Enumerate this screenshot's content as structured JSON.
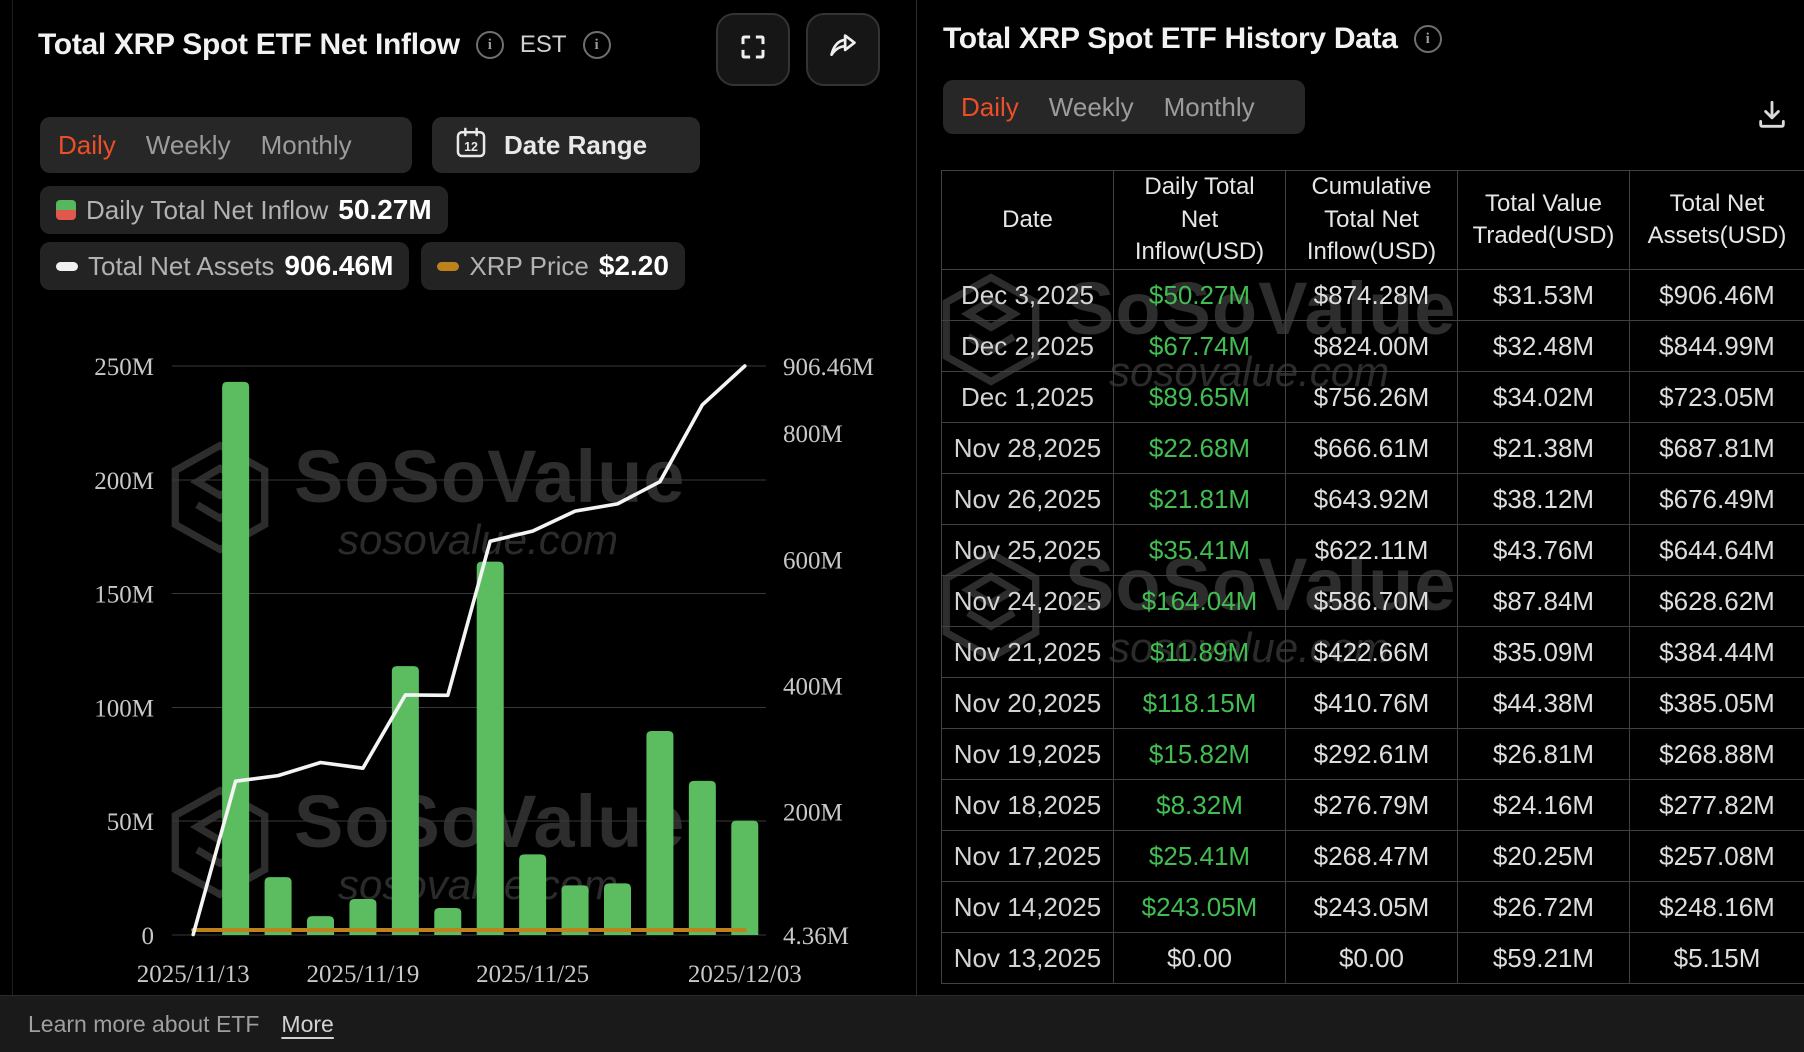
{
  "left_panel": {
    "title": "Total XRP Spot ETF Net Inflow",
    "timezone": "EST",
    "tabs": [
      "Daily",
      "Weekly",
      "Monthly"
    ],
    "active_tab": "Daily",
    "date_range_label": "Date Range",
    "legend": [
      {
        "label": "Daily Total Net Inflow",
        "value": "50.27M",
        "swatch": "green-red-split-square"
      },
      {
        "label": "Total Net Assets",
        "value": "906.46M",
        "swatch": "white-dash"
      },
      {
        "label": "XRP Price",
        "value": "$2.20",
        "swatch": "gold-dash"
      }
    ]
  },
  "chart_data": {
    "type": "combo",
    "x": [
      "2025/11/13",
      "2025/11/14",
      "2025/11/17",
      "2025/11/18",
      "2025/11/19",
      "2025/11/20",
      "2025/11/21",
      "2025/11/24",
      "2025/11/25",
      "2025/11/26",
      "2025/11/28",
      "2025/12/01",
      "2025/12/02",
      "2025/12/03"
    ],
    "x_tick_labels": {
      "0": "2025/11/13",
      "4": "2025/11/19",
      "8": "2025/11/25",
      "13": "2025/12/03"
    },
    "series": [
      {
        "name": "Daily Total Net Inflow",
        "type": "bar",
        "axis": "left",
        "color": "#5cbd60",
        "values": [
          0,
          243.05,
          25.41,
          8.32,
          15.82,
          118.15,
          11.89,
          164.04,
          35.41,
          21.81,
          22.68,
          89.65,
          67.74,
          50.27
        ]
      },
      {
        "name": "Total Net Assets",
        "type": "line",
        "axis": "right",
        "color": "#f4f4f4",
        "values": [
          5.15,
          248.16,
          257.08,
          277.82,
          268.88,
          385.05,
          384.44,
          628.62,
          644.64,
          676.49,
          687.81,
          723.05,
          844.99,
          906.46
        ]
      },
      {
        "name": "XRP Price",
        "type": "line",
        "axis": "price",
        "color": "#bd821b",
        "values": [
          2.2,
          2.2,
          2.2,
          2.2,
          2.2,
          2.2,
          2.2,
          2.2,
          2.2,
          2.2,
          2.2,
          2.2,
          2.2,
          2.2
        ]
      }
    ],
    "left_axis": {
      "ticks": [
        "250M",
        "200M",
        "150M",
        "100M",
        "50M",
        "0"
      ],
      "min": 0,
      "max": 250
    },
    "right_axis": {
      "ticks": [
        "906.46M",
        "800M",
        "600M",
        "400M",
        "200M",
        "4.36M"
      ],
      "min": 4.36,
      "max": 906.46
    },
    "unit": "USD millions",
    "grid": true,
    "title": "Total XRP Spot ETF Net Inflow"
  },
  "right_panel": {
    "title": "Total XRP Spot ETF History Data",
    "tabs": [
      "Daily",
      "Weekly",
      "Monthly"
    ],
    "active_tab": "Daily",
    "table": {
      "headers": [
        "Date",
        "Daily Total Net Inflow(USD)",
        "Cumulative Total Net Inflow(USD)",
        "Total Value Traded(USD)",
        "Total Net Assets(USD)"
      ],
      "rows": [
        {
          "date": "Dec 3,2025",
          "inflow": "$50.27M",
          "cumulative": "$874.28M",
          "traded": "$31.53M",
          "assets": "$906.46M",
          "inflow_positive": true
        },
        {
          "date": "Dec 2,2025",
          "inflow": "$67.74M",
          "cumulative": "$824.00M",
          "traded": "$32.48M",
          "assets": "$844.99M",
          "inflow_positive": true
        },
        {
          "date": "Dec 1,2025",
          "inflow": "$89.65M",
          "cumulative": "$756.26M",
          "traded": "$34.02M",
          "assets": "$723.05M",
          "inflow_positive": true
        },
        {
          "date": "Nov 28,2025",
          "inflow": "$22.68M",
          "cumulative": "$666.61M",
          "traded": "$21.38M",
          "assets": "$687.81M",
          "inflow_positive": true
        },
        {
          "date": "Nov 26,2025",
          "inflow": "$21.81M",
          "cumulative": "$643.92M",
          "traded": "$38.12M",
          "assets": "$676.49M",
          "inflow_positive": true
        },
        {
          "date": "Nov 25,2025",
          "inflow": "$35.41M",
          "cumulative": "$622.11M",
          "traded": "$43.76M",
          "assets": "$644.64M",
          "inflow_positive": true
        },
        {
          "date": "Nov 24,2025",
          "inflow": "$164.04M",
          "cumulative": "$586.70M",
          "traded": "$87.84M",
          "assets": "$628.62M",
          "inflow_positive": true
        },
        {
          "date": "Nov 21,2025",
          "inflow": "$11.89M",
          "cumulative": "$422.66M",
          "traded": "$35.09M",
          "assets": "$384.44M",
          "inflow_positive": true
        },
        {
          "date": "Nov 20,2025",
          "inflow": "$118.15M",
          "cumulative": "$410.76M",
          "traded": "$44.38M",
          "assets": "$385.05M",
          "inflow_positive": true
        },
        {
          "date": "Nov 19,2025",
          "inflow": "$15.82M",
          "cumulative": "$292.61M",
          "traded": "$26.81M",
          "assets": "$268.88M",
          "inflow_positive": true
        },
        {
          "date": "Nov 18,2025",
          "inflow": "$8.32M",
          "cumulative": "$276.79M",
          "traded": "$24.16M",
          "assets": "$277.82M",
          "inflow_positive": true
        },
        {
          "date": "Nov 17,2025",
          "inflow": "$25.41M",
          "cumulative": "$268.47M",
          "traded": "$20.25M",
          "assets": "$257.08M",
          "inflow_positive": true
        },
        {
          "date": "Nov 14,2025",
          "inflow": "$243.05M",
          "cumulative": "$243.05M",
          "traded": "$26.72M",
          "assets": "$248.16M",
          "inflow_positive": true
        },
        {
          "date": "Nov 13,2025",
          "inflow": "$0.00",
          "cumulative": "$0.00",
          "traded": "$59.21M",
          "assets": "$5.15M",
          "inflow_positive": false
        }
      ]
    }
  },
  "footer": {
    "text": "Learn more about ETF",
    "link": "More"
  },
  "watermark": {
    "brand": "SoSoValue",
    "domain": "sosovalue.com"
  },
  "colors": {
    "accent_orange": "#ec4e27",
    "bar_green": "#5cbd60",
    "table_green": "#42bd52",
    "legend_red": "#e2574b",
    "gold": "#bd821b",
    "line_white": "#f4f4f4",
    "background": "#000000",
    "panel_border": "#414141"
  }
}
